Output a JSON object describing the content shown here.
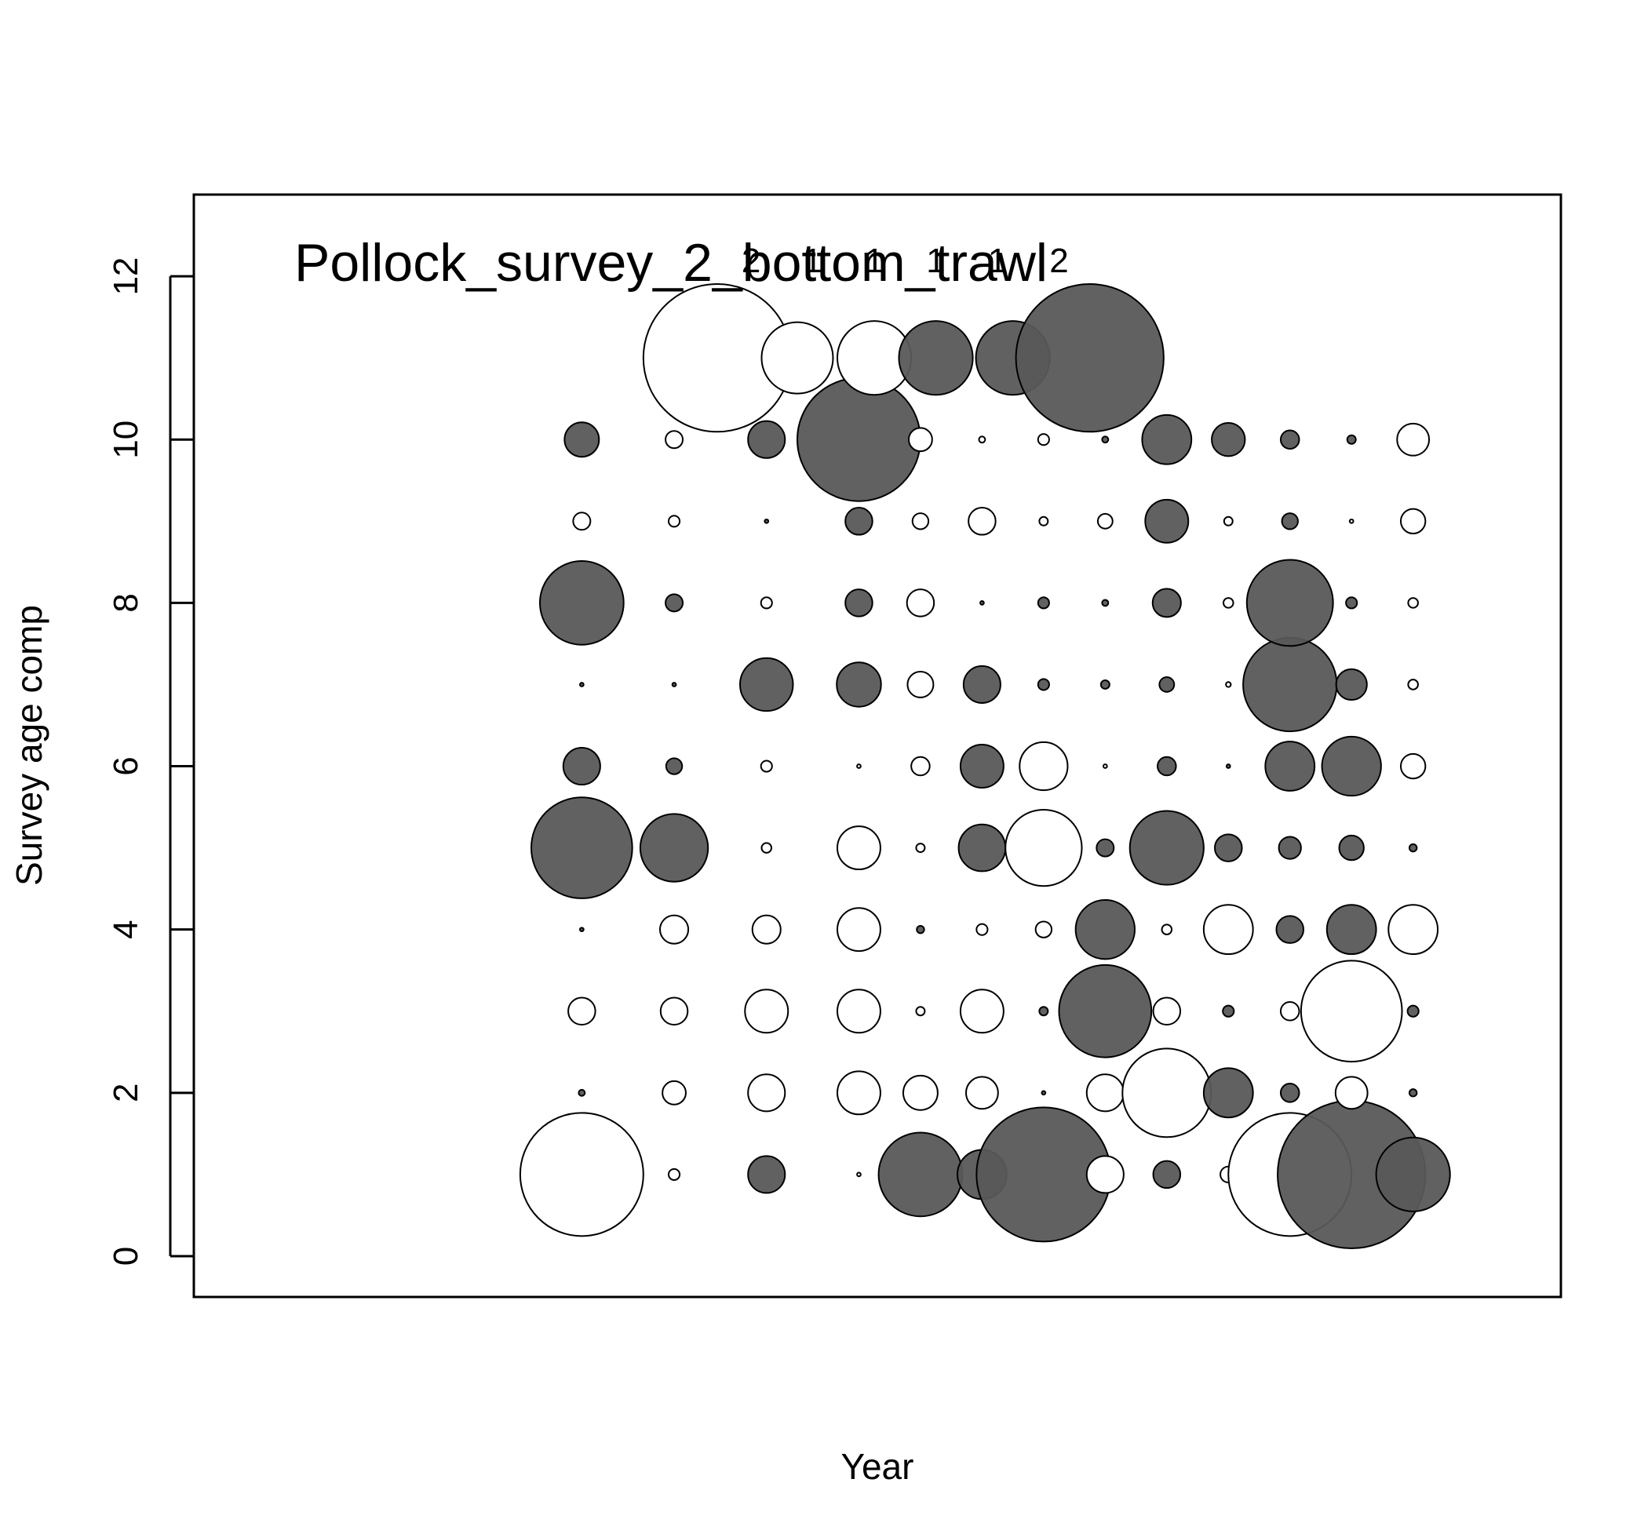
{
  "chart_data": {
    "type": "scatter",
    "subtype": "bubble",
    "title": "Pollock_survey_2_bottom_trawl",
    "xlabel": "Year",
    "ylabel": "Survey age comp",
    "yticks": [
      "0",
      "2",
      "4",
      "6",
      "8",
      "10",
      "12"
    ],
    "ylim": [
      -0.5,
      13
    ],
    "xlim": [
      -6.3,
      15.9
    ],
    "grid": false,
    "legend": "none",
    "colors": {
      "positive": "#595959",
      "negative": "#ffffff",
      "stroke": "#000000"
    },
    "top_labels": [
      {
        "x": 2.5,
        "text": "2"
      },
      {
        "x": 3.5,
        "text": "1"
      },
      {
        "x": 4.5,
        "text": "1"
      },
      {
        "x": 5.5,
        "text": "1"
      },
      {
        "x": 6.5,
        "text": "1"
      },
      {
        "x": 7.5,
        "text": "2"
      }
    ],
    "series": [
      {
        "name": "",
        "points": [
          {
            "x": 0,
            "y": 1,
            "r": 1.0,
            "sign": "neg"
          },
          {
            "x": 0,
            "y": 2,
            "r": 0.05,
            "sign": "pos"
          },
          {
            "x": 0,
            "y": 3,
            "r": 0.22,
            "sign": "neg"
          },
          {
            "x": 0,
            "y": 4,
            "r": 0.03,
            "sign": "pos"
          },
          {
            "x": 0,
            "y": 5,
            "r": 0.82,
            "sign": "pos"
          },
          {
            "x": 0,
            "y": 6,
            "r": 0.3,
            "sign": "pos"
          },
          {
            "x": 0,
            "y": 7,
            "r": 0.03,
            "sign": "pos"
          },
          {
            "x": 0,
            "y": 8,
            "r": 0.68,
            "sign": "pos"
          },
          {
            "x": 0,
            "y": 9,
            "r": 0.14,
            "sign": "neg"
          },
          {
            "x": 0,
            "y": 10,
            "r": 0.28,
            "sign": "pos"
          },
          {
            "x": 1.5,
            "y": 1,
            "r": 0.09,
            "sign": "neg"
          },
          {
            "x": 1.5,
            "y": 2,
            "r": 0.19,
            "sign": "neg"
          },
          {
            "x": 1.5,
            "y": 3,
            "r": 0.22,
            "sign": "neg"
          },
          {
            "x": 1.5,
            "y": 4,
            "r": 0.23,
            "sign": "neg"
          },
          {
            "x": 1.5,
            "y": 5,
            "r": 0.55,
            "sign": "pos"
          },
          {
            "x": 1.5,
            "y": 6,
            "r": 0.13,
            "sign": "pos"
          },
          {
            "x": 1.5,
            "y": 7,
            "r": 0.03,
            "sign": "pos"
          },
          {
            "x": 1.5,
            "y": 8,
            "r": 0.14,
            "sign": "pos"
          },
          {
            "x": 1.5,
            "y": 9,
            "r": 0.09,
            "sign": "neg"
          },
          {
            "x": 1.5,
            "y": 10,
            "r": 0.14,
            "sign": "neg"
          },
          {
            "x": 3,
            "y": 1,
            "r": 0.3,
            "sign": "pos"
          },
          {
            "x": 3,
            "y": 2,
            "r": 0.3,
            "sign": "neg"
          },
          {
            "x": 3,
            "y": 3,
            "r": 0.35,
            "sign": "neg"
          },
          {
            "x": 3,
            "y": 4,
            "r": 0.23,
            "sign": "neg"
          },
          {
            "x": 3,
            "y": 5,
            "r": 0.08,
            "sign": "neg"
          },
          {
            "x": 3,
            "y": 6,
            "r": 0.09,
            "sign": "neg"
          },
          {
            "x": 3,
            "y": 7,
            "r": 0.43,
            "sign": "pos"
          },
          {
            "x": 3,
            "y": 8,
            "r": 0.09,
            "sign": "neg"
          },
          {
            "x": 3,
            "y": 9,
            "r": 0.03,
            "sign": "pos"
          },
          {
            "x": 3,
            "y": 10,
            "r": 0.3,
            "sign": "pos"
          },
          {
            "x": 4.5,
            "y": 1,
            "r": 0.03,
            "sign": "neg"
          },
          {
            "x": 4.5,
            "y": 2,
            "r": 0.35,
            "sign": "neg"
          },
          {
            "x": 4.5,
            "y": 3,
            "r": 0.35,
            "sign": "neg"
          },
          {
            "x": 4.5,
            "y": 4,
            "r": 0.35,
            "sign": "neg"
          },
          {
            "x": 4.5,
            "y": 5,
            "r": 0.35,
            "sign": "neg"
          },
          {
            "x": 4.5,
            "y": 6,
            "r": 0.03,
            "sign": "neg"
          },
          {
            "x": 4.5,
            "y": 7,
            "r": 0.36,
            "sign": "pos"
          },
          {
            "x": 4.5,
            "y": 8,
            "r": 0.22,
            "sign": "pos"
          },
          {
            "x": 4.5,
            "y": 9,
            "r": 0.22,
            "sign": "pos"
          },
          {
            "x": 4.5,
            "y": 10,
            "r": 1.0,
            "sign": "pos"
          },
          {
            "x": 5.5,
            "y": 1,
            "r": 0.68,
            "sign": "pos"
          },
          {
            "x": 5.5,
            "y": 2,
            "r": 0.28,
            "sign": "neg"
          },
          {
            "x": 5.5,
            "y": 3,
            "r": 0.07,
            "sign": "neg"
          },
          {
            "x": 5.5,
            "y": 4,
            "r": 0.06,
            "sign": "pos"
          },
          {
            "x": 5.5,
            "y": 5,
            "r": 0.07,
            "sign": "neg"
          },
          {
            "x": 5.5,
            "y": 6,
            "r": 0.15,
            "sign": "neg"
          },
          {
            "x": 5.5,
            "y": 7,
            "r": 0.21,
            "sign": "neg"
          },
          {
            "x": 5.5,
            "y": 8,
            "r": 0.22,
            "sign": "neg"
          },
          {
            "x": 5.5,
            "y": 9,
            "r": 0.13,
            "sign": "neg"
          },
          {
            "x": 5.5,
            "y": 10,
            "r": 0.19,
            "sign": "neg"
          },
          {
            "x": 6.5,
            "y": 1,
            "r": 0.4,
            "sign": "pos"
          },
          {
            "x": 6.5,
            "y": 2,
            "r": 0.26,
            "sign": "neg"
          },
          {
            "x": 6.5,
            "y": 3,
            "r": 0.35,
            "sign": "neg"
          },
          {
            "x": 6.5,
            "y": 4,
            "r": 0.09,
            "sign": "neg"
          },
          {
            "x": 6.5,
            "y": 5,
            "r": 0.38,
            "sign": "pos"
          },
          {
            "x": 6.5,
            "y": 6,
            "r": 0.35,
            "sign": "pos"
          },
          {
            "x": 6.5,
            "y": 7,
            "r": 0.3,
            "sign": "pos"
          },
          {
            "x": 6.5,
            "y": 8,
            "r": 0.03,
            "sign": "pos"
          },
          {
            "x": 6.5,
            "y": 9,
            "r": 0.22,
            "sign": "neg"
          },
          {
            "x": 6.5,
            "y": 10,
            "r": 0.05,
            "sign": "neg"
          },
          {
            "x": 7.5,
            "y": 1,
            "r": 1.09,
            "sign": "pos"
          },
          {
            "x": 7.5,
            "y": 2,
            "r": 0.03,
            "sign": "pos"
          },
          {
            "x": 7.5,
            "y": 3,
            "r": 0.07,
            "sign": "pos"
          },
          {
            "x": 7.5,
            "y": 4,
            "r": 0.13,
            "sign": "neg"
          },
          {
            "x": 7.5,
            "y": 5,
            "r": 0.62,
            "sign": "neg"
          },
          {
            "x": 7.5,
            "y": 6,
            "r": 0.39,
            "sign": "neg"
          },
          {
            "x": 7.5,
            "y": 7,
            "r": 0.09,
            "sign": "pos"
          },
          {
            "x": 7.5,
            "y": 8,
            "r": 0.09,
            "sign": "pos"
          },
          {
            "x": 7.5,
            "y": 9,
            "r": 0.07,
            "sign": "neg"
          },
          {
            "x": 7.5,
            "y": 10,
            "r": 0.09,
            "sign": "neg"
          },
          {
            "x": 8.5,
            "y": 1,
            "r": 0.3,
            "sign": "neg"
          },
          {
            "x": 8.5,
            "y": 2,
            "r": 0.3,
            "sign": "neg"
          },
          {
            "x": 8.5,
            "y": 3,
            "r": 0.75,
            "sign": "pos"
          },
          {
            "x": 8.5,
            "y": 4,
            "r": 0.48,
            "sign": "pos"
          },
          {
            "x": 8.5,
            "y": 5,
            "r": 0.14,
            "sign": "pos"
          },
          {
            "x": 8.5,
            "y": 6,
            "r": 0.03,
            "sign": "neg"
          },
          {
            "x": 8.5,
            "y": 7,
            "r": 0.07,
            "sign": "pos"
          },
          {
            "x": 8.5,
            "y": 8,
            "r": 0.05,
            "sign": "pos"
          },
          {
            "x": 8.5,
            "y": 9,
            "r": 0.12,
            "sign": "neg"
          },
          {
            "x": 8.5,
            "y": 10,
            "r": 0.05,
            "sign": "pos"
          },
          {
            "x": 9.5,
            "y": 1,
            "r": 0.22,
            "sign": "pos"
          },
          {
            "x": 9.5,
            "y": 2,
            "r": 0.72,
            "sign": "neg"
          },
          {
            "x": 9.5,
            "y": 3,
            "r": 0.22,
            "sign": "neg"
          },
          {
            "x": 9.5,
            "y": 4,
            "r": 0.08,
            "sign": "neg"
          },
          {
            "x": 9.5,
            "y": 5,
            "r": 0.6,
            "sign": "pos"
          },
          {
            "x": 9.5,
            "y": 6,
            "r": 0.15,
            "sign": "pos"
          },
          {
            "x": 9.5,
            "y": 7,
            "r": 0.12,
            "sign": "pos"
          },
          {
            "x": 9.5,
            "y": 8,
            "r": 0.23,
            "sign": "pos"
          },
          {
            "x": 9.5,
            "y": 9,
            "r": 0.35,
            "sign": "pos"
          },
          {
            "x": 9.5,
            "y": 10,
            "r": 0.4,
            "sign": "pos"
          },
          {
            "x": 10.5,
            "y": 1,
            "r": 0.13,
            "sign": "neg"
          },
          {
            "x": 10.5,
            "y": 2,
            "r": 0.4,
            "sign": "pos"
          },
          {
            "x": 10.5,
            "y": 3,
            "r": 0.09,
            "sign": "pos"
          },
          {
            "x": 10.5,
            "y": 4,
            "r": 0.4,
            "sign": "neg"
          },
          {
            "x": 10.5,
            "y": 5,
            "r": 0.22,
            "sign": "pos"
          },
          {
            "x": 10.5,
            "y": 6,
            "r": 0.03,
            "sign": "pos"
          },
          {
            "x": 10.5,
            "y": 7,
            "r": 0.04,
            "sign": "neg"
          },
          {
            "x": 10.5,
            "y": 8,
            "r": 0.08,
            "sign": "neg"
          },
          {
            "x": 10.5,
            "y": 9,
            "r": 0.07,
            "sign": "neg"
          },
          {
            "x": 10.5,
            "y": 10,
            "r": 0.27,
            "sign": "pos"
          },
          {
            "x": 11.5,
            "y": 1,
            "r": 1.0,
            "sign": "neg"
          },
          {
            "x": 11.5,
            "y": 2,
            "r": 0.15,
            "sign": "pos"
          },
          {
            "x": 11.5,
            "y": 3,
            "r": 0.15,
            "sign": "neg"
          },
          {
            "x": 11.5,
            "y": 4,
            "r": 0.22,
            "sign": "pos"
          },
          {
            "x": 11.5,
            "y": 5,
            "r": 0.18,
            "sign": "pos"
          },
          {
            "x": 11.5,
            "y": 6,
            "r": 0.4,
            "sign": "pos"
          },
          {
            "x": 11.5,
            "y": 7,
            "r": 0.76,
            "sign": "pos"
          },
          {
            "x": 11.5,
            "y": 8,
            "r": 0.7,
            "sign": "pos"
          },
          {
            "x": 11.5,
            "y": 9,
            "r": 0.13,
            "sign": "pos"
          },
          {
            "x": 11.5,
            "y": 10,
            "r": 0.15,
            "sign": "pos"
          },
          {
            "x": 12.5,
            "y": 1,
            "r": 1.2,
            "sign": "pos"
          },
          {
            "x": 12.5,
            "y": 2,
            "r": 0.26,
            "sign": "neg"
          },
          {
            "x": 12.5,
            "y": 3,
            "r": 0.82,
            "sign": "neg"
          },
          {
            "x": 12.5,
            "y": 4,
            "r": 0.4,
            "sign": "pos"
          },
          {
            "x": 12.5,
            "y": 5,
            "r": 0.2,
            "sign": "pos"
          },
          {
            "x": 12.5,
            "y": 6,
            "r": 0.48,
            "sign": "pos"
          },
          {
            "x": 12.5,
            "y": 7,
            "r": 0.25,
            "sign": "pos"
          },
          {
            "x": 12.5,
            "y": 8,
            "r": 0.09,
            "sign": "pos"
          },
          {
            "x": 12.5,
            "y": 9,
            "r": 0.03,
            "sign": "neg"
          },
          {
            "x": 12.5,
            "y": 10,
            "r": 0.07,
            "sign": "pos"
          },
          {
            "x": 13.5,
            "y": 1,
            "r": 0.6,
            "sign": "pos"
          },
          {
            "x": 13.5,
            "y": 2,
            "r": 0.06,
            "sign": "pos"
          },
          {
            "x": 13.5,
            "y": 3,
            "r": 0.09,
            "sign": "pos"
          },
          {
            "x": 13.5,
            "y": 4,
            "r": 0.4,
            "sign": "neg"
          },
          {
            "x": 13.5,
            "y": 5,
            "r": 0.06,
            "sign": "pos"
          },
          {
            "x": 13.5,
            "y": 6,
            "r": 0.2,
            "sign": "neg"
          },
          {
            "x": 13.5,
            "y": 7,
            "r": 0.08,
            "sign": "neg"
          },
          {
            "x": 13.5,
            "y": 8,
            "r": 0.08,
            "sign": "neg"
          },
          {
            "x": 13.5,
            "y": 9,
            "r": 0.2,
            "sign": "neg"
          },
          {
            "x": 13.5,
            "y": 10,
            "r": 0.26,
            "sign": "neg"
          },
          {
            "x": 2.2,
            "y": 11,
            "r": 1.2,
            "sign": "neg"
          },
          {
            "x": 3.5,
            "y": 11,
            "r": 0.58,
            "sign": "neg"
          },
          {
            "x": 4.75,
            "y": 11,
            "r": 0.6,
            "sign": "neg"
          },
          {
            "x": 5.75,
            "y": 11,
            "r": 0.6,
            "sign": "pos"
          },
          {
            "x": 7,
            "y": 11,
            "r": 0.6,
            "sign": "pos"
          },
          {
            "x": 8.25,
            "y": 11,
            "r": 1.2,
            "sign": "pos"
          }
        ]
      }
    ]
  }
}
